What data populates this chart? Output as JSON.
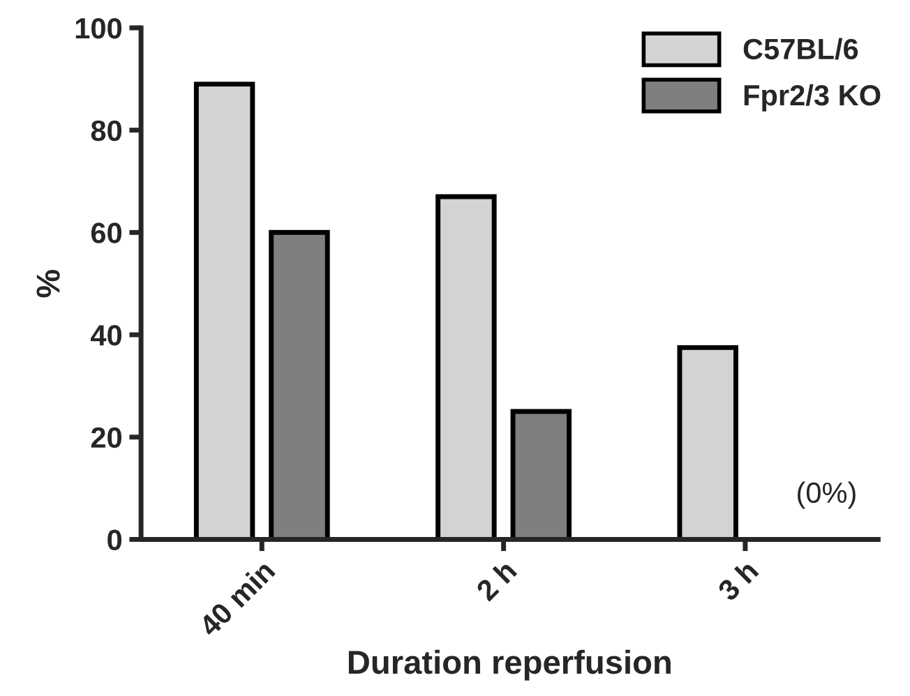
{
  "chart_data": {
    "type": "bar",
    "xlabel": "Duration reperfusion",
    "ylabel": "%",
    "categories": [
      "40 min",
      "2 h",
      "3 h"
    ],
    "series": [
      {
        "name": "C57BL/6",
        "color": "#d3d3d3",
        "values": [
          89,
          67,
          37.5
        ]
      },
      {
        "name": "Fpr2/3 KO",
        "color": "#7f7f7f",
        "values": [
          60,
          25,
          0
        ]
      }
    ],
    "ylim": [
      0,
      100
    ],
    "yticks": [
      0,
      20,
      40,
      60,
      80,
      100
    ],
    "annotations": [
      "(0%)"
    ],
    "grid": false,
    "legend": "top right"
  }
}
